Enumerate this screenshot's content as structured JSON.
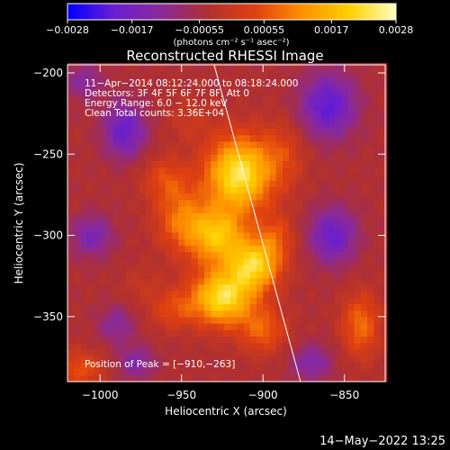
{
  "chart_data": {
    "type": "heatmap",
    "title": "Reconstructed RHESSI Image",
    "xlabel": "Heliocentric X (arcsec)",
    "ylabel": "Heliocentric Y (arcsec)",
    "xlim": [
      -1020,
      -825
    ],
    "ylim": [
      -390,
      -195
    ],
    "x_ticks": [
      -1000,
      -950,
      -900,
      -850
    ],
    "y_ticks": [
      -200,
      -250,
      -300,
      -350
    ],
    "x_tick_labels": [
      "−1000",
      "−950",
      "−900",
      "−850"
    ],
    "y_tick_labels": [
      "−200",
      "−250",
      "−300",
      "−350"
    ],
    "colorbar": {
      "range": [
        -0.0028,
        0.0028
      ],
      "tick_values": [
        -0.0028,
        -0.0017,
        -0.00055,
        0.00055,
        0.0017,
        0.0028
      ],
      "tick_labels": [
        "−0.0028",
        "−0.0017",
        "−0.00055",
        "0.00055",
        "0.0017",
        "0.0028"
      ],
      "unit_label": "(photons cm⁻² s⁻¹ asec⁻²)",
      "colors": [
        "#0000ff",
        "#6a1fd0",
        "#8a2a9a",
        "#b03030",
        "#e04010",
        "#ff9000",
        "#ffd000",
        "#ffffc0"
      ]
    },
    "annotations": {
      "time_range": "11−Apr−2014 08:12:24.000 to 08:18:24.000",
      "detectors": "Detectors: 3F 4F 5F 6F 7F 8F, Att 0",
      "energy_range": "Energy Range: 6.0 − 12.0 keV",
      "clean": "Clean     Total counts: 3.36E+04",
      "peak": "Position of Peak = [−910,−263]"
    },
    "peak_position": [
      -910,
      -263
    ],
    "limb_line": [
      [
        -930,
        -195
      ],
      [
        -877,
        -390
      ]
    ],
    "blobs": [
      {
        "x": -915,
        "y": -262,
        "sx": 14,
        "sy": 16,
        "amp": 1.0
      },
      {
        "x": -928,
        "y": -300,
        "sx": 12,
        "sy": 12,
        "amp": 0.75
      },
      {
        "x": -925,
        "y": -338,
        "sx": 13,
        "sy": 12,
        "amp": 0.95
      },
      {
        "x": -905,
        "y": -318,
        "sx": 11,
        "sy": 11,
        "amp": 0.85
      },
      {
        "x": -950,
        "y": -290,
        "sx": 11,
        "sy": 14,
        "amp": 0.45
      },
      {
        "x": -960,
        "y": -265,
        "sx": 10,
        "sy": 10,
        "amp": 0.3
      },
      {
        "x": -955,
        "y": -345,
        "sx": 10,
        "sy": 9,
        "amp": 0.3
      },
      {
        "x": -900,
        "y": -358,
        "sx": 10,
        "sy": 10,
        "amp": 0.4
      },
      {
        "x": -888,
        "y": -250,
        "sx": 10,
        "sy": 15,
        "amp": 0.25
      },
      {
        "x": -892,
        "y": -300,
        "sx": 8,
        "sy": 10,
        "amp": 0.3
      },
      {
        "x": -945,
        "y": -228,
        "sx": 10,
        "sy": 10,
        "amp": 0.15
      },
      {
        "x": -840,
        "y": -355,
        "sx": 8,
        "sy": 14,
        "amp": 0.45
      },
      {
        "x": -1012,
        "y": -382,
        "sx": 10,
        "sy": 8,
        "amp": 0.35
      },
      {
        "x": -975,
        "y": -330,
        "sx": 8,
        "sy": 8,
        "amp": 0.12
      },
      {
        "x": -985,
        "y": -235,
        "sx": 9,
        "sy": 12,
        "amp": -0.55
      },
      {
        "x": -1005,
        "y": -300,
        "sx": 9,
        "sy": 9,
        "amp": -0.4
      },
      {
        "x": -990,
        "y": -355,
        "sx": 8,
        "sy": 8,
        "amp": -0.3
      },
      {
        "x": -860,
        "y": -220,
        "sx": 12,
        "sy": 14,
        "amp": -0.6
      },
      {
        "x": -857,
        "y": -300,
        "sx": 10,
        "sy": 12,
        "amp": -0.55
      },
      {
        "x": -870,
        "y": -378,
        "sx": 9,
        "sy": 8,
        "amp": -0.35
      },
      {
        "x": -978,
        "y": -378,
        "sx": 8,
        "sy": 7,
        "amp": -0.35
      },
      {
        "x": -1010,
        "y": -205,
        "sx": 8,
        "sy": 8,
        "amp": -0.3
      }
    ]
  },
  "footer": {
    "timestamp": "14−May−2022 13:25"
  }
}
